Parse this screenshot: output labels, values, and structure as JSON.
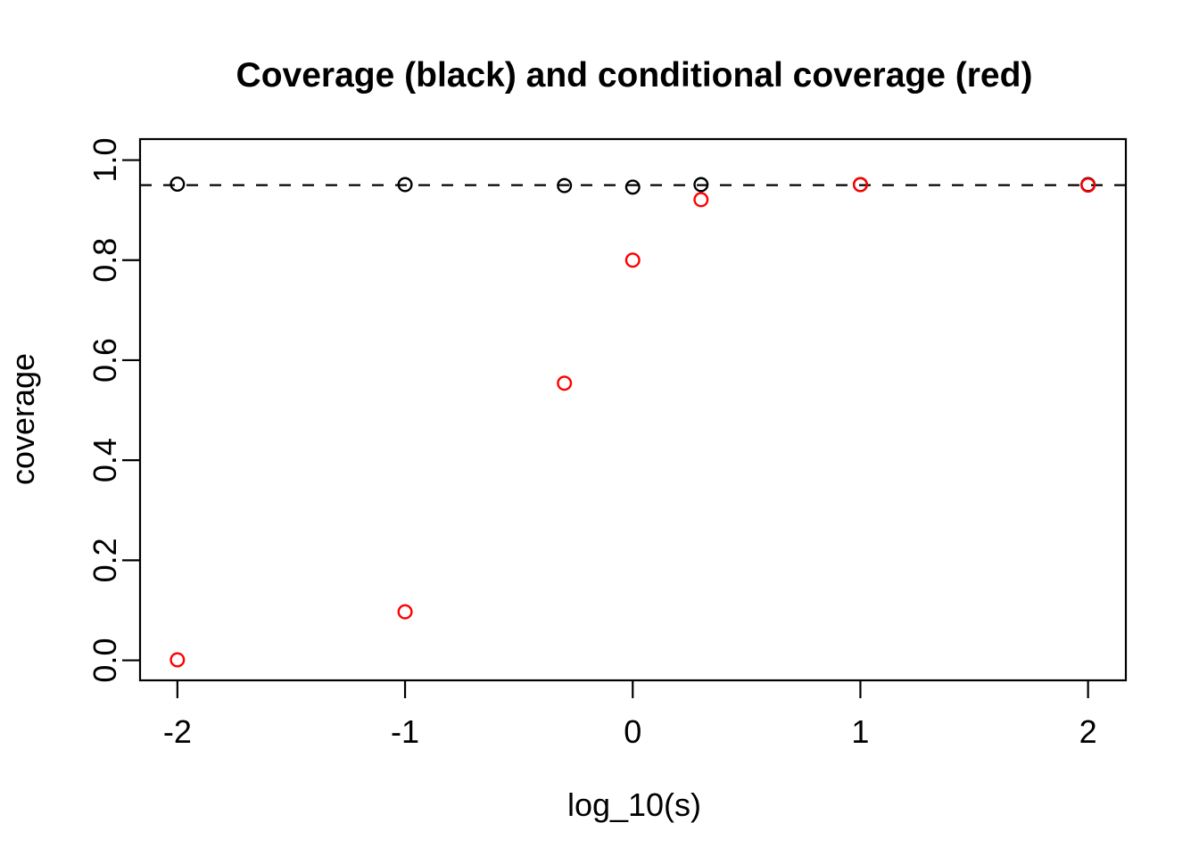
{
  "figure": {
    "background": "#FFFFFF"
  },
  "chart_data": {
    "type": "scatter",
    "title": "Coverage (black) and conditional coverage (red)",
    "xlabel": "log_10(s)",
    "ylabel": "coverage",
    "x": [
      -2,
      -1,
      -0.3,
      0,
      0.3,
      1,
      2
    ],
    "series": [
      {
        "name": "coverage",
        "color": "#000000",
        "marker": "open-circle",
        "values": [
          0.952,
          0.951,
          0.949,
          0.946,
          0.951,
          0.951,
          0.951
        ]
      },
      {
        "name": "conditional coverage",
        "color": "#FF0000",
        "marker": "open-circle",
        "values": [
          0.001,
          0.097,
          0.554,
          0.8,
          0.921,
          0.951,
          0.95
        ]
      }
    ],
    "reference_line": {
      "y": 0.95,
      "style": "dashed",
      "color": "#000000"
    },
    "x_ticks": {
      "values": [
        -2,
        -1,
        0,
        1,
        2
      ],
      "labels": [
        "-2",
        "-1",
        "0",
        "1",
        "2"
      ]
    },
    "y_ticks": {
      "values": [
        0.0,
        0.2,
        0.4,
        0.6,
        0.8,
        1.0
      ],
      "labels": [
        "0.0",
        "0.2",
        "0.4",
        "0.6",
        "0.8",
        "1.0"
      ]
    },
    "xlim": [
      -2.164,
      2.166
    ],
    "ylim": [
      -0.04,
      1.042
    ],
    "grid": false,
    "legend_position": "none"
  },
  "colors": {
    "black": "#000000",
    "red": "#FF0000",
    "background": "#FFFFFF"
  }
}
